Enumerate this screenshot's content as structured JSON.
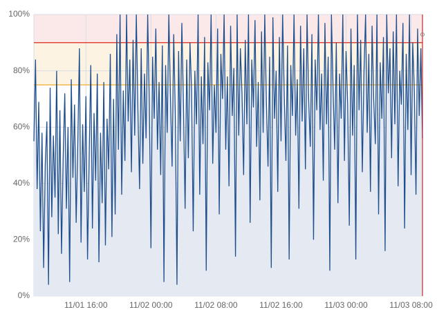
{
  "chart_data": {
    "type": "area-line",
    "values": [
      55,
      84,
      38,
      69,
      23,
      58,
      10,
      47,
      62,
      4,
      74,
      28,
      57,
      35,
      80,
      22,
      66,
      15,
      49,
      72,
      31,
      60,
      5,
      77,
      42,
      68,
      26,
      54,
      88,
      19,
      61,
      37,
      71,
      13,
      50,
      82,
      24,
      65,
      41,
      79,
      12,
      58,
      33,
      76,
      18,
      63,
      45,
      86,
      21,
      70,
      29,
      93,
      52,
      100,
      36,
      73,
      48,
      100,
      62,
      84,
      44,
      91,
      57,
      100,
      66,
      38,
      88,
      47,
      79,
      56,
      100,
      69,
      17,
      85,
      63,
      95,
      52,
      76,
      43,
      89,
      5,
      82,
      58,
      100,
      71,
      46,
      93,
      64,
      4,
      87,
      55,
      97,
      68,
      31,
      84,
      49,
      90,
      73,
      23,
      80,
      61,
      100,
      36,
      78,
      54,
      92,
      9,
      83,
      66,
      100,
      47,
      75,
      58,
      95,
      29,
      86,
      70,
      100,
      52,
      78,
      39,
      96,
      64,
      81,
      14,
      100,
      57,
      88,
      72,
      43,
      91,
      61,
      100,
      26,
      84,
      67,
      98,
      53,
      76,
      34,
      94,
      58,
      100,
      69,
      46,
      85,
      10,
      99,
      63,
      80,
      37,
      92,
      55,
      100,
      71,
      48,
      89,
      13,
      82,
      64,
      100,
      57,
      77,
      31,
      96,
      62,
      88,
      45,
      100,
      70,
      53,
      93,
      20,
      84,
      66,
      100,
      59,
      79,
      41,
      97,
      61,
      85,
      9,
      100,
      74,
      52,
      90,
      33,
      79,
      63,
      100,
      48,
      87,
      68,
      25,
      95,
      57,
      82,
      13,
      100,
      66,
      91,
      44,
      79,
      100,
      58,
      86,
      37,
      96,
      70,
      54,
      100,
      29,
      83,
      63,
      92,
      16,
      100,
      72,
      88,
      49,
      94,
      61,
      100,
      39,
      80,
      68,
      97,
      24,
      86,
      59,
      100,
      43,
      90,
      73,
      36,
      95,
      64,
      88,
      56
    ],
    "color": "#1f4e8c",
    "fill": "#e4e9f2",
    "xlim": [
      0,
      239
    ],
    "xticks": [
      {
        "value": 32,
        "label": "11/01 16:00"
      },
      {
        "value": 72,
        "label": "11/02 00:00"
      },
      {
        "value": 112,
        "label": "11/02 08:00"
      },
      {
        "value": 152,
        "label": "11/02 16:00"
      },
      {
        "value": 192,
        "label": "11/03 00:00"
      },
      {
        "value": 232,
        "label": "11/03 08:00"
      }
    ],
    "ylim": [
      0,
      100
    ],
    "yticks": [
      {
        "value": 0,
        "label": "0%"
      },
      {
        "value": 20,
        "label": "20%"
      },
      {
        "value": 40,
        "label": "40%"
      },
      {
        "value": 60,
        "label": "60%"
      },
      {
        "value": 80,
        "label": "80%"
      },
      {
        "value": 100,
        "label": "100%"
      }
    ],
    "grid": true,
    "thresholds": [
      {
        "value": 90,
        "color": "#e0453a",
        "band": "#fbe9ea"
      },
      {
        "value": 75,
        "color": "#f0b84a",
        "band": "#fdf3e3"
      }
    ]
  }
}
